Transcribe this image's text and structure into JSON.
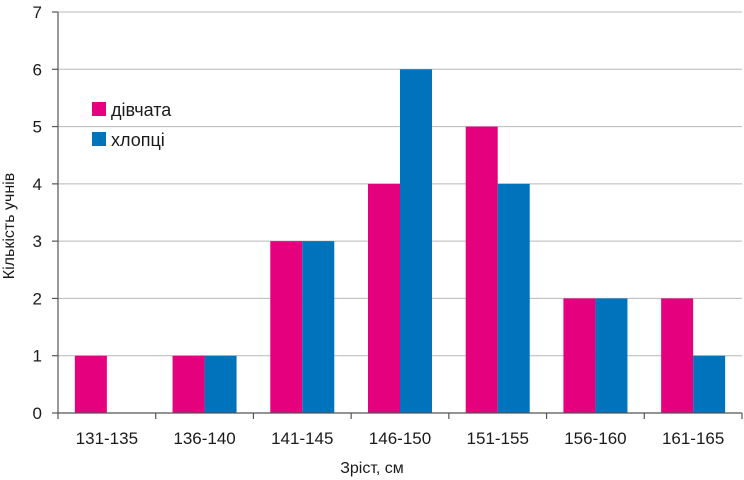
{
  "chart_data": {
    "type": "bar",
    "categories": [
      "131-135",
      "136-140",
      "141-145",
      "146-150",
      "151-155",
      "156-160",
      "161-165"
    ],
    "series": [
      {
        "name": "дівчата",
        "values": [
          1,
          1,
          3,
          4,
          5,
          2,
          2
        ],
        "color": "#e5007e"
      },
      {
        "name": "хлопці",
        "values": [
          0,
          1,
          3,
          6,
          4,
          2,
          1
        ],
        "color": "#0073bd"
      }
    ],
    "title": "",
    "xlabel": "Зріст, см",
    "ylabel": "Кількість учнів",
    "ylim": [
      0,
      7
    ],
    "yticks": [
      0,
      1,
      2,
      3,
      4,
      5,
      6,
      7
    ],
    "grid": true,
    "legend_position": "top-left"
  }
}
